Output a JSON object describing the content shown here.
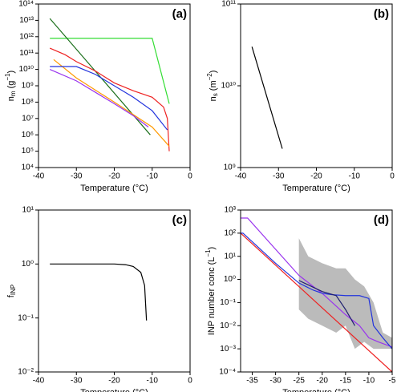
{
  "chart_data": [
    {
      "type": "line",
      "panel_label": "(a)",
      "xlabel": "Temperature (°C)",
      "ylabel_parts": [
        {
          "text": "n"
        },
        {
          "text": "m",
          "shift": "sub"
        },
        {
          "text": " (g"
        },
        {
          "text": "−1",
          "shift": "sup"
        },
        {
          "text": ")"
        }
      ],
      "xlim": [
        -40,
        0
      ],
      "xticks": [
        -40,
        -30,
        -20,
        -10,
        0
      ],
      "ylog": true,
      "ylim": [
        10000,
        100000000000000
      ],
      "yticks": [
        {
          "value": 10000,
          "label": "10⁴"
        },
        {
          "value": 100000,
          "label": "10⁵"
        },
        {
          "value": 1000000,
          "label": "10⁶"
        },
        {
          "value": 10000000,
          "label": "10⁷"
        },
        {
          "value": 100000000,
          "label": "10⁸"
        },
        {
          "value": 1000000000,
          "label": "10⁹"
        },
        {
          "value": 10000000000,
          "label": "10¹⁰"
        },
        {
          "value": 100000000000,
          "label": "10¹¹"
        },
        {
          "value": 1000000000000,
          "label": "10¹²"
        },
        {
          "value": 10000000000000,
          "label": "10¹³"
        },
        {
          "value": 100000000000000,
          "label": "10¹⁴"
        }
      ],
      "series": [
        {
          "color": "#33dd33",
          "x": [
            -37,
            -10,
            -5.5
          ],
          "values": [
            800000000000,
            800000000000,
            80000000
          ]
        },
        {
          "color": "#1a6e1a",
          "x": [
            -37,
            -10.5
          ],
          "values": [
            13000000000000,
            1000000
          ]
        },
        {
          "color": "#ee2222",
          "x": [
            -37,
            -33,
            -30,
            -25,
            -20,
            -15,
            -10,
            -7,
            -6,
            -5.5
          ],
          "values": [
            200000000000,
            80000000000,
            30000000000,
            8000000000,
            1500000000,
            500000000,
            200000000,
            50000000,
            10000000,
            100000
          ]
        },
        {
          "color": "#ff9900",
          "x": [
            -36,
            -30,
            -20,
            -10,
            -5.5
          ],
          "values": [
            40000000000,
            3000000000,
            100000000,
            3000000,
            200000
          ]
        },
        {
          "color": "#2233dd",
          "x": [
            -37,
            -30,
            -25,
            -20,
            -15,
            -10,
            -6
          ],
          "values": [
            15000000000,
            15000000000,
            5000000000,
            1000000000,
            200000000,
            30000000,
            2000000
          ]
        },
        {
          "color": "#9933ee",
          "x": [
            -37,
            -30,
            -20,
            -15,
            -11
          ],
          "values": [
            10000000000,
            2000000000,
            80000000,
            15000000,
            3000000
          ]
        }
      ]
    },
    {
      "type": "line",
      "panel_label": "(b)",
      "xlabel": "Temperature (°C)",
      "ylabel_parts": [
        {
          "text": "n"
        },
        {
          "text": "s",
          "shift": "sub"
        },
        {
          "text": " (m"
        },
        {
          "text": "−2",
          "shift": "sup"
        },
        {
          "text": ")"
        }
      ],
      "xlim": [
        -40,
        0
      ],
      "xticks": [
        -40,
        -30,
        -20,
        -10,
        0
      ],
      "ylog": true,
      "ylim": [
        1000000000,
        100000000000
      ],
      "yticks": [
        {
          "value": 1000000000,
          "label": "10⁹"
        },
        {
          "value": 10000000000,
          "label": "10¹⁰"
        },
        {
          "value": 100000000000,
          "label": "10¹¹"
        }
      ],
      "series": [
        {
          "color": "#000000",
          "x": [
            -37,
            -29
          ],
          "values": [
            30000000000,
            1700000000
          ]
        }
      ]
    },
    {
      "type": "line",
      "panel_label": "(c)",
      "xlabel": "Temperature (°C)",
      "ylabel_parts": [
        {
          "text": "f"
        },
        {
          "text": "INP",
          "shift": "sub"
        }
      ],
      "xlim": [
        -40,
        0
      ],
      "xticks": [
        -40,
        -30,
        -20,
        -10,
        0
      ],
      "ylog": true,
      "ylim": [
        0.01,
        10
      ],
      "yticks": [
        {
          "value": 0.01,
          "label": "10⁻²"
        },
        {
          "value": 0.1,
          "label": "10⁻¹"
        },
        {
          "value": 1,
          "label": "10⁰"
        },
        {
          "value": 10,
          "label": "10¹"
        }
      ],
      "series": [
        {
          "color": "#000000",
          "x": [
            -37,
            -20,
            -17,
            -15,
            -13,
            -12,
            -11.5
          ],
          "values": [
            1,
            1,
            0.97,
            0.9,
            0.7,
            0.4,
            0.09
          ]
        }
      ]
    },
    {
      "type": "line",
      "panel_label": "(d)",
      "xlabel": "Temperature (°C)",
      "ylabel_parts": [
        {
          "text": "INP number conc (L"
        },
        {
          "text": "−1",
          "shift": "sup"
        },
        {
          "text": ")"
        }
      ],
      "xlim": [
        -37.5,
        -5
      ],
      "xticks": [
        -35,
        -30,
        -25,
        -20,
        -15,
        -10,
        -5
      ],
      "ylog": true,
      "ylim": [
        0.0001,
        1000
      ],
      "yticks": [
        {
          "value": 0.0001,
          "label": "10⁻⁴"
        },
        {
          "value": 0.001,
          "label": "10⁻³"
        },
        {
          "value": 0.01,
          "label": "10⁻²"
        },
        {
          "value": 0.1,
          "label": "10⁻¹"
        },
        {
          "value": 1,
          "label": "10⁰"
        },
        {
          "value": 10,
          "label": "10¹"
        },
        {
          "value": 100,
          "label": "10²"
        },
        {
          "value": 1000,
          "label": "10³"
        }
      ],
      "band": {
        "color": "#bbbbbb",
        "x": [
          -25,
          -23,
          -20,
          -17,
          -15,
          -13,
          -11,
          -9,
          -7,
          -5
        ],
        "upper": [
          60,
          10,
          5,
          3,
          3,
          1,
          0.5,
          0.1,
          0.005,
          0.003
        ],
        "lower": [
          0.05,
          0.02,
          0.01,
          0.005,
          0.01,
          0.001,
          0.002,
          0.001,
          0.001,
          0.001
        ]
      },
      "series": [
        {
          "color": "#ee2222",
          "x": [
            -37.5,
            -5
          ],
          "values": [
            100,
            0.0001
          ]
        },
        {
          "color": "#9933ee",
          "x": [
            -37.5,
            -36,
            -30,
            -25,
            -20,
            -15,
            -12,
            -10,
            -8,
            -5
          ],
          "values": [
            450,
            450,
            20,
            1.5,
            0.25,
            0.03,
            0.01,
            0.003,
            0.002,
            0.0012
          ]
        },
        {
          "color": "#2233dd",
          "x": [
            -37.5,
            -37,
            -30,
            -25,
            -22,
            -20,
            -18,
            -15,
            -12,
            -10,
            -9,
            -7,
            -5
          ],
          "values": [
            100,
            100,
            5,
            0.7,
            0.35,
            0.25,
            0.22,
            0.2,
            0.2,
            0.15,
            0.01,
            0.003,
            0.001
          ]
        },
        {
          "color": "#202070",
          "x": [
            -25,
            -20,
            -17,
            -15,
            -13
          ],
          "values": [
            0.9,
            0.3,
            0.2,
            0.05,
            0.01
          ]
        }
      ]
    }
  ]
}
